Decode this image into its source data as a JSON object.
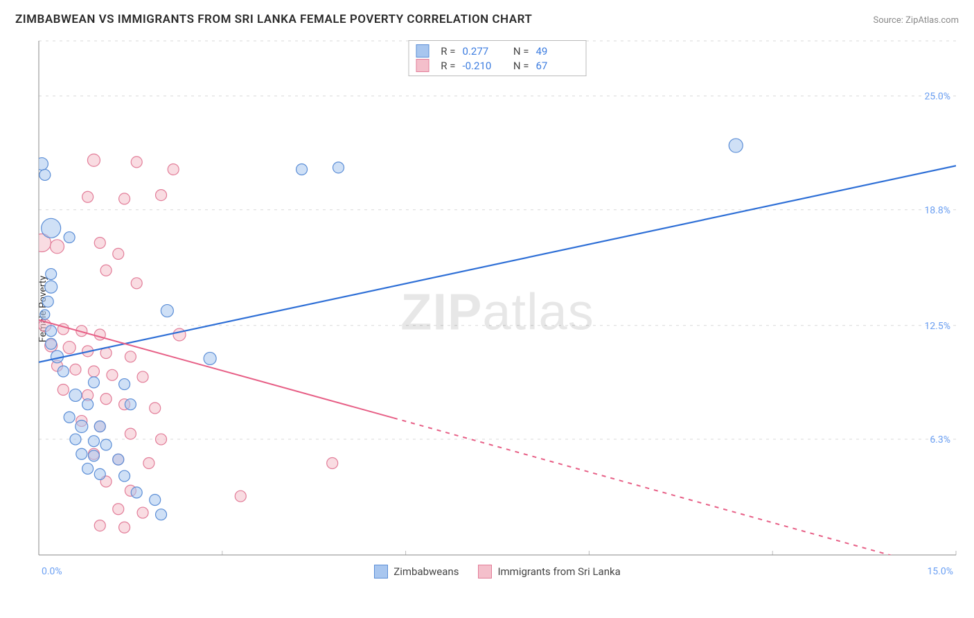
{
  "title": "ZIMBABWEAN VS IMMIGRANTS FROM SRI LANKA FEMALE POVERTY CORRELATION CHART",
  "source": "Source: ZipAtlas.com",
  "ylabel": "Female Poverty",
  "watermark_bold": "ZIP",
  "watermark_rest": "atlas",
  "chart": {
    "type": "scatter_with_regression",
    "background_color": "#ffffff",
    "grid_color": "#d9d9d9",
    "axis_color": "#888888",
    "tick_color": "#bbbbbb",
    "xlim": [
      0,
      15
    ],
    "ylim": [
      0,
      28
    ],
    "x_ticks": [
      0,
      3,
      6,
      9,
      12,
      15
    ],
    "y_grid_vals": [
      6.3,
      12.5,
      18.8,
      25.0,
      28.0
    ],
    "y_tick_labels": [
      "6.3%",
      "12.5%",
      "18.8%",
      "25.0%"
    ],
    "y_tick_vals": [
      6.3,
      12.5,
      18.8,
      25.0
    ],
    "y_label_color": "#6a9ff3",
    "x_label_color_min": "#6a9ff3",
    "x_label_color_max": "#6a9ff3",
    "x_min_label": "0.0%",
    "x_max_label": "15.0%",
    "point_radius_default": 8,
    "point_opacity": 0.55,
    "series": [
      {
        "name": "Zimbabweans",
        "color_fill": "#a8c6ef",
        "color_stroke": "#5a8dd6",
        "line_color": "#2e6fd6",
        "line_width": 2.2,
        "stats": {
          "R": "0.277",
          "N": "49"
        },
        "trend": {
          "x1": 0,
          "y1": 10.5,
          "x2": 15,
          "y2": 21.2,
          "dash_from_x": 15
        },
        "points": [
          {
            "x": 0.05,
            "y": 21.3,
            "r": 9
          },
          {
            "x": 0.1,
            "y": 20.7,
            "r": 8
          },
          {
            "x": 4.3,
            "y": 21.0,
            "r": 8
          },
          {
            "x": 4.9,
            "y": 21.1,
            "r": 8
          },
          {
            "x": 11.4,
            "y": 22.3,
            "r": 10
          },
          {
            "x": 0.2,
            "y": 17.8,
            "r": 14
          },
          {
            "x": 0.5,
            "y": 17.3,
            "r": 8
          },
          {
            "x": 0.2,
            "y": 15.3,
            "r": 8
          },
          {
            "x": 0.2,
            "y": 14.6,
            "r": 9
          },
          {
            "x": 0.15,
            "y": 13.8,
            "r": 8
          },
          {
            "x": 0.1,
            "y": 13.1,
            "r": 7
          },
          {
            "x": 2.1,
            "y": 13.3,
            "r": 9
          },
          {
            "x": 0.2,
            "y": 12.2,
            "r": 8
          },
          {
            "x": 0.2,
            "y": 11.5,
            "r": 8
          },
          {
            "x": 0.3,
            "y": 10.8,
            "r": 9
          },
          {
            "x": 2.8,
            "y": 10.7,
            "r": 9
          },
          {
            "x": 0.4,
            "y": 10.0,
            "r": 8
          },
          {
            "x": 0.9,
            "y": 9.4,
            "r": 8
          },
          {
            "x": 1.4,
            "y": 9.3,
            "r": 8
          },
          {
            "x": 0.6,
            "y": 8.7,
            "r": 9
          },
          {
            "x": 0.8,
            "y": 8.2,
            "r": 8
          },
          {
            "x": 1.5,
            "y": 8.2,
            "r": 8
          },
          {
            "x": 0.5,
            "y": 7.5,
            "r": 8
          },
          {
            "x": 0.7,
            "y": 7.0,
            "r": 9
          },
          {
            "x": 1.0,
            "y": 7.0,
            "r": 8
          },
          {
            "x": 0.6,
            "y": 6.3,
            "r": 8
          },
          {
            "x": 0.9,
            "y": 6.2,
            "r": 8
          },
          {
            "x": 1.1,
            "y": 6.0,
            "r": 8
          },
          {
            "x": 0.7,
            "y": 5.5,
            "r": 8
          },
          {
            "x": 0.9,
            "y": 5.4,
            "r": 8
          },
          {
            "x": 1.3,
            "y": 5.2,
            "r": 8
          },
          {
            "x": 0.8,
            "y": 4.7,
            "r": 8
          },
          {
            "x": 1.0,
            "y": 4.4,
            "r": 8
          },
          {
            "x": 1.4,
            "y": 4.3,
            "r": 8
          },
          {
            "x": 1.6,
            "y": 3.4,
            "r": 8
          },
          {
            "x": 1.9,
            "y": 3.0,
            "r": 8
          },
          {
            "x": 2.0,
            "y": 2.2,
            "r": 8
          }
        ]
      },
      {
        "name": "Immigrants from Sri Lanka",
        "color_fill": "#f4bfcb",
        "color_stroke": "#e27c98",
        "line_color": "#e75f86",
        "line_width": 2.0,
        "stats": {
          "R": "-0.210",
          "N": "67"
        },
        "trend": {
          "x1": 0,
          "y1": 12.8,
          "x2": 15,
          "y2": -1.0,
          "dash_from_x": 5.8
        },
        "points": [
          {
            "x": 0.9,
            "y": 21.5,
            "r": 9
          },
          {
            "x": 1.6,
            "y": 21.4,
            "r": 8
          },
          {
            "x": 2.2,
            "y": 21.0,
            "r": 8
          },
          {
            "x": 0.8,
            "y": 19.5,
            "r": 8
          },
          {
            "x": 1.4,
            "y": 19.4,
            "r": 8
          },
          {
            "x": 2.0,
            "y": 19.6,
            "r": 8
          },
          {
            "x": 0.05,
            "y": 17.0,
            "r": 13
          },
          {
            "x": 0.3,
            "y": 16.8,
            "r": 10
          },
          {
            "x": 1.0,
            "y": 17.0,
            "r": 8
          },
          {
            "x": 1.3,
            "y": 16.4,
            "r": 8
          },
          {
            "x": 1.1,
            "y": 15.5,
            "r": 8
          },
          {
            "x": 1.6,
            "y": 14.8,
            "r": 8
          },
          {
            "x": 0.1,
            "y": 12.5,
            "r": 9
          },
          {
            "x": 0.4,
            "y": 12.3,
            "r": 8
          },
          {
            "x": 0.7,
            "y": 12.2,
            "r": 8
          },
          {
            "x": 1.0,
            "y": 12.0,
            "r": 8
          },
          {
            "x": 2.3,
            "y": 12.0,
            "r": 9
          },
          {
            "x": 0.2,
            "y": 11.4,
            "r": 9
          },
          {
            "x": 0.5,
            "y": 11.3,
            "r": 9
          },
          {
            "x": 0.8,
            "y": 11.1,
            "r": 8
          },
          {
            "x": 1.1,
            "y": 11.0,
            "r": 8
          },
          {
            "x": 1.5,
            "y": 10.8,
            "r": 8
          },
          {
            "x": 0.3,
            "y": 10.3,
            "r": 8
          },
          {
            "x": 0.6,
            "y": 10.1,
            "r": 8
          },
          {
            "x": 0.9,
            "y": 10.0,
            "r": 8
          },
          {
            "x": 1.2,
            "y": 9.8,
            "r": 8
          },
          {
            "x": 1.7,
            "y": 9.7,
            "r": 8
          },
          {
            "x": 0.4,
            "y": 9.0,
            "r": 8
          },
          {
            "x": 0.8,
            "y": 8.7,
            "r": 8
          },
          {
            "x": 1.1,
            "y": 8.5,
            "r": 8
          },
          {
            "x": 1.4,
            "y": 8.2,
            "r": 8
          },
          {
            "x": 1.9,
            "y": 8.0,
            "r": 8
          },
          {
            "x": 0.7,
            "y": 7.3,
            "r": 8
          },
          {
            "x": 1.0,
            "y": 7.0,
            "r": 8
          },
          {
            "x": 1.5,
            "y": 6.6,
            "r": 8
          },
          {
            "x": 2.0,
            "y": 6.3,
            "r": 8
          },
          {
            "x": 0.9,
            "y": 5.5,
            "r": 8
          },
          {
            "x": 1.3,
            "y": 5.2,
            "r": 8
          },
          {
            "x": 1.8,
            "y": 5.0,
            "r": 8
          },
          {
            "x": 4.8,
            "y": 5.0,
            "r": 8
          },
          {
            "x": 1.1,
            "y": 4.0,
            "r": 8
          },
          {
            "x": 1.5,
            "y": 3.5,
            "r": 8
          },
          {
            "x": 3.3,
            "y": 3.2,
            "r": 8
          },
          {
            "x": 1.3,
            "y": 2.5,
            "r": 8
          },
          {
            "x": 1.7,
            "y": 2.3,
            "r": 8
          },
          {
            "x": 1.0,
            "y": 1.6,
            "r": 8
          },
          {
            "x": 1.4,
            "y": 1.5,
            "r": 8
          }
        ]
      }
    ],
    "bottom_legend": [
      {
        "label": "Zimbabweans",
        "color": "#a8c6ef",
        "stroke": "#5a8dd6"
      },
      {
        "label": "Immigrants from Sri Lanka",
        "color": "#f4bfcb",
        "stroke": "#e27c98"
      }
    ]
  }
}
